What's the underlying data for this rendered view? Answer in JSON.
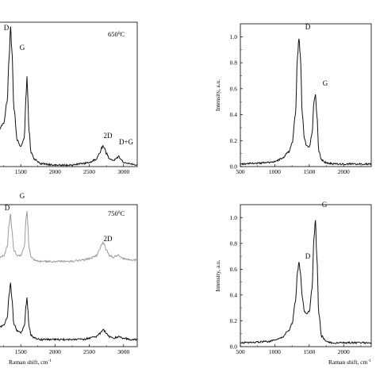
{
  "chart_data": [
    {
      "type": "line",
      "title": "",
      "annotation": "650",
      "annotation_unit": "0",
      "annotation_suffix": "C",
      "xlabel": "",
      "ylabel": "",
      "xlim": [
        1150,
        3200
      ],
      "xticks": [
        "1500",
        "2000",
        "2500",
        "3000"
      ],
      "peaks": [
        {
          "label": "D",
          "x": 1350
        },
        {
          "label": "G",
          "x": 1590
        },
        {
          "label": "2D",
          "x": 2700
        },
        {
          "label": "D+G",
          "x": 2930
        }
      ],
      "series": [
        {
          "color": "#111111",
          "x": [
            1150,
            1250,
            1300,
            1330,
            1350,
            1370,
            1400,
            1450,
            1500,
            1550,
            1580,
            1590,
            1600,
            1620,
            1650,
            1700,
            1800,
            2000,
            2200,
            2400,
            2500,
            2600,
            2650,
            2680,
            2700,
            2720,
            2750,
            2800,
            2850,
            2900,
            2930,
            2960,
            3000,
            3100,
            3200
          ],
          "y": [
            0.22,
            0.3,
            0.45,
            0.75,
            0.97,
            0.8,
            0.4,
            0.18,
            0.14,
            0.2,
            0.52,
            0.63,
            0.5,
            0.25,
            0.1,
            0.05,
            0.02,
            0.01,
            0.01,
            0.02,
            0.03,
            0.05,
            0.09,
            0.13,
            0.14,
            0.13,
            0.09,
            0.05,
            0.04,
            0.06,
            0.07,
            0.05,
            0.03,
            0.02,
            0.01
          ]
        }
      ]
    },
    {
      "type": "line",
      "title": "",
      "annotation": "750",
      "annotation_unit": "0",
      "annotation_suffix": "C",
      "xlabel": "Raman shift, cm",
      "xlabel_sup": "-1",
      "ylabel": "",
      "xlim": [
        1150,
        3200
      ],
      "xticks": [
        "1500",
        "2000",
        "2500",
        "3000"
      ],
      "peaks": [
        {
          "label": "D",
          "x": 1350
        },
        {
          "label": "G",
          "x": 1590
        },
        {
          "label": "2D",
          "x": 2700
        }
      ],
      "series": [
        {
          "color": "#9a9a9a",
          "x": [
            1150,
            1250,
            1300,
            1330,
            1350,
            1370,
            1400,
            1450,
            1500,
            1550,
            1580,
            1590,
            1600,
            1620,
            1650,
            1700,
            1800,
            2000,
            2200,
            2400,
            2500,
            2600,
            2650,
            2680,
            2700,
            2720,
            2750,
            2800,
            2850,
            2900,
            2930,
            2960,
            3000,
            3100,
            3200
          ],
          "y": [
            0.62,
            0.64,
            0.7,
            0.86,
            0.93,
            0.82,
            0.68,
            0.64,
            0.64,
            0.7,
            0.92,
            0.96,
            0.88,
            0.7,
            0.63,
            0.61,
            0.6,
            0.6,
            0.6,
            0.61,
            0.62,
            0.64,
            0.68,
            0.72,
            0.73,
            0.72,
            0.68,
            0.64,
            0.63,
            0.64,
            0.645,
            0.63,
            0.62,
            0.61,
            0.61
          ]
        },
        {
          "color": "#111111",
          "x": [
            1150,
            1250,
            1300,
            1330,
            1350,
            1370,
            1400,
            1450,
            1500,
            1550,
            1580,
            1590,
            1600,
            1620,
            1650,
            1700,
            1800,
            2000,
            2200,
            2400,
            2500,
            2600,
            2650,
            2680,
            2700,
            2720,
            2750,
            2800,
            2850,
            2900,
            2930,
            2960,
            3000,
            3100,
            3200
          ],
          "y": [
            0.13,
            0.15,
            0.2,
            0.36,
            0.45,
            0.34,
            0.16,
            0.11,
            0.1,
            0.14,
            0.3,
            0.35,
            0.28,
            0.14,
            0.08,
            0.06,
            0.05,
            0.05,
            0.05,
            0.05,
            0.06,
            0.07,
            0.09,
            0.11,
            0.12,
            0.11,
            0.09,
            0.07,
            0.06,
            0.065,
            0.07,
            0.065,
            0.06,
            0.05,
            0.05
          ]
        }
      ]
    },
    {
      "type": "line",
      "title": "",
      "xlabel": "",
      "ylabel": "Intensity, a.u.",
      "xlim": [
        500,
        2400
      ],
      "ylim": [
        0,
        1.1
      ],
      "xticks": [
        "500",
        "1000",
        "1500",
        "2000"
      ],
      "yticks": [
        "0.0",
        "0.2",
        "0.4",
        "0.6",
        "0.8",
        "1.0"
      ],
      "peaks": [
        {
          "label": "D",
          "x": 1350
        },
        {
          "label": "G",
          "x": 1590
        }
      ],
      "series": [
        {
          "color": "#111111",
          "x": [
            500,
            700,
            900,
            1000,
            1100,
            1200,
            1250,
            1300,
            1330,
            1350,
            1370,
            1400,
            1430,
            1460,
            1500,
            1540,
            1570,
            1590,
            1610,
            1640,
            1680,
            1750,
            1850,
            2000,
            2200,
            2400
          ],
          "y": [
            0.02,
            0.025,
            0.03,
            0.04,
            0.06,
            0.11,
            0.18,
            0.4,
            0.85,
            0.99,
            0.85,
            0.4,
            0.22,
            0.16,
            0.15,
            0.25,
            0.5,
            0.56,
            0.4,
            0.12,
            0.05,
            0.03,
            0.02,
            0.02,
            0.02,
            0.02
          ]
        }
      ]
    },
    {
      "type": "line",
      "title": "",
      "xlabel": "Raman shift, cm",
      "xlabel_sup": "-1",
      "ylabel": "Intensity, a.u.",
      "xlim": [
        500,
        2400
      ],
      "ylim": [
        0,
        1.1
      ],
      "xticks": [
        "500",
        "1000",
        "1500",
        "2000"
      ],
      "yticks": [
        "0.0",
        "0.2",
        "0.4",
        "0.6",
        "0.8",
        "1.0"
      ],
      "peaks": [
        {
          "label": "D",
          "x": 1350
        },
        {
          "label": "G",
          "x": 1590
        }
      ],
      "series": [
        {
          "color": "#111111",
          "x": [
            500,
            700,
            900,
            1000,
            1100,
            1200,
            1250,
            1300,
            1330,
            1350,
            1370,
            1400,
            1430,
            1460,
            1500,
            1540,
            1570,
            1590,
            1610,
            1640,
            1680,
            1750,
            1850,
            2000,
            2200,
            2400
          ],
          "y": [
            0.03,
            0.035,
            0.04,
            0.05,
            0.07,
            0.12,
            0.18,
            0.35,
            0.58,
            0.65,
            0.58,
            0.38,
            0.27,
            0.25,
            0.27,
            0.45,
            0.85,
            0.98,
            0.7,
            0.25,
            0.08,
            0.04,
            0.03,
            0.03,
            0.03,
            0.03
          ]
        }
      ]
    }
  ]
}
